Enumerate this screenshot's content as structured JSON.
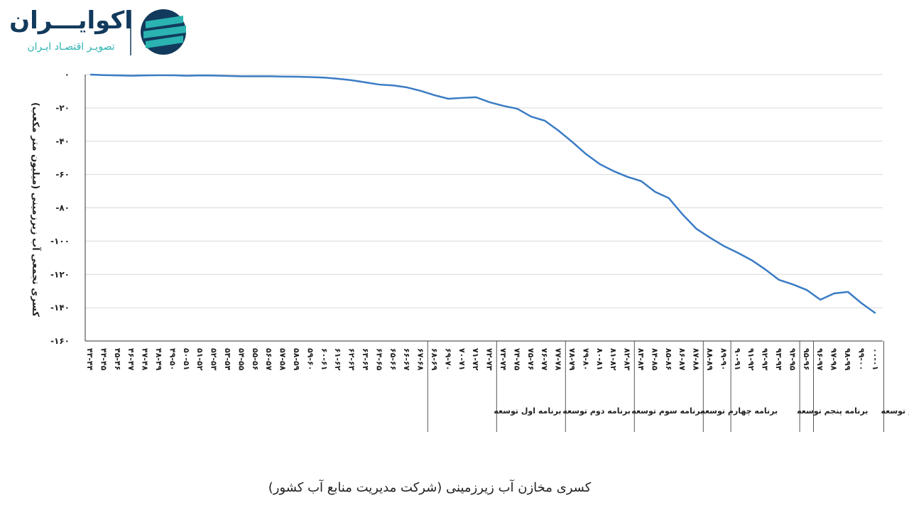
{
  "header": {
    "logo_title": "اکوایـــران",
    "logo_subtitle": "تصویـر اقتصـاد ایـران"
  },
  "chart_data": {
    "type": "line",
    "y_label": "کسری تجمعی آب زیرزمینی (میلیون متر مکعب)",
    "categories": [
      "۴۳-۴۴",
      "۴۴-۴۵",
      "۴۵-۴۶",
      "۴۶-۴۷",
      "۴۷-۴۸",
      "۴۸-۴۹",
      "۴۹-۵۰",
      "۵۰-۵۱",
      "۵۱-۵۲",
      "۵۲-۵۳",
      "۵۳-۵۴",
      "۵۴-۵۵",
      "۵۵-۵۶",
      "۵۶-۵۷",
      "۵۷-۵۸",
      "۵۸-۵۹",
      "۵۹-۶۰",
      "۶۰-۶۱",
      "۶۱-۶۲",
      "۶۲-۶۳",
      "۶۳-۶۴",
      "۶۴-۶۵",
      "۶۵-۶۶",
      "۶۶-۶۷",
      "۶۷-۶۸",
      "۶۸-۶۹",
      "۶۹-۷۰",
      "۷۰-۷۱",
      "۷۱-۷۲",
      "۷۲-۷۳",
      "۷۳-۷۴",
      "۷۴-۷۵",
      "۷۵-۷۶",
      "۷۶-۷۷",
      "۷۷-۷۸",
      "۷۸-۷۹",
      "۷۹-۸۰",
      "۸۰-۸۱",
      "۸۱-۸۲",
      "۸۲-۸۳",
      "۸۳-۸۴",
      "۸۴-۸۵",
      "۸۵-۸۶",
      "۸۶-۸۷",
      "۸۷-۸۸",
      "۸۸-۸۹",
      "۸۹-۹۰",
      "۹۰-۹۱",
      "۹۱-۹۲",
      "۹۲-۹۳",
      "۹۳-۹۴",
      "۹۴-۹۵",
      "۹۵-۹۶",
      "۹۶-۹۷",
      "۹۷-۹۸",
      "۹۸-۹۹",
      "۹۹-۰۰",
      "۰۰-۰۱"
    ],
    "values": [
      0,
      -0.3,
      -0.5,
      -0.7,
      -0.5,
      -0.4,
      -0.4,
      -0.7,
      -0.5,
      -0.6,
      -0.8,
      -1,
      -1,
      -1,
      -1.2,
      -1.3,
      -1.5,
      -1.8,
      -2.5,
      -3.4,
      -4.7,
      -6,
      -6.5,
      -7.7,
      -9.8,
      -12.4,
      -14.5,
      -14,
      -13.6,
      -16.6,
      -18.8,
      -20.5,
      -25.2,
      -27.7,
      -33.7,
      -40.5,
      -47.8,
      -53.8,
      -58,
      -61.4,
      -64,
      -70.4,
      -74.2,
      -84,
      -92.6,
      -98,
      -103,
      -107,
      -111.4,
      -117,
      -123.3,
      -126,
      -129.3,
      -135.2,
      -131.4,
      -130.5,
      -137.4,
      -143.3
    ],
    "color": "#3a7cc4",
    "ylim": [
      -160,
      0
    ],
    "yticks": [
      {
        "value": 0,
        "label": "۰"
      },
      {
        "value": -20,
        "label": "-۲۰"
      },
      {
        "value": -40,
        "label": "-۴۰"
      },
      {
        "value": -60,
        "label": "-۶۰"
      },
      {
        "value": -80,
        "label": "-۸۰"
      },
      {
        "value": -100,
        "label": "-۱۰۰"
      },
      {
        "value": -120,
        "label": "-۱۲۰"
      },
      {
        "value": -140,
        "label": "-۱۴۰"
      },
      {
        "value": -160,
        "label": "-۱۶۰"
      }
    ],
    "grid": true,
    "annotations": [
      "برنامه اول توسعه",
      "برنامه دوم توسعه",
      "برنامه سوم توسعه",
      "برنامه چهارم توسعه",
      "برنامه پنجم توسعه",
      "برنامه ششم توسعه"
    ]
  },
  "caption": "کسری مخازن آب زیرزمینی (شرکت مدیریت منابع آب کشور)"
}
